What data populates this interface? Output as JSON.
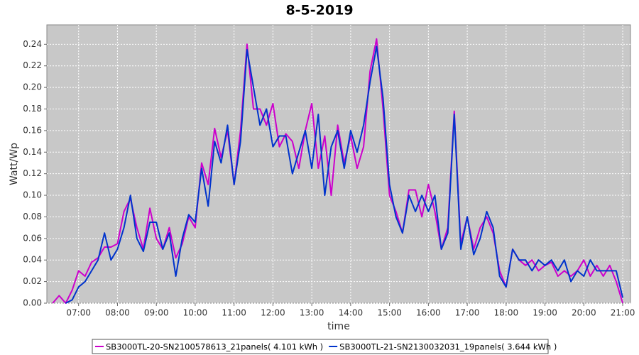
{
  "chart_data": {
    "type": "line",
    "title": "8-5-2019",
    "x_label": "time",
    "y_label": "Watt/Wp",
    "x": [
      "06:20",
      "06:30",
      "06:40",
      "06:50",
      "07:00",
      "07:10",
      "07:20",
      "07:30",
      "07:40",
      "07:50",
      "08:00",
      "08:10",
      "08:20",
      "08:30",
      "08:40",
      "08:50",
      "09:00",
      "09:10",
      "09:20",
      "09:30",
      "09:40",
      "09:50",
      "10:00",
      "10:10",
      "10:20",
      "10:30",
      "10:40",
      "10:50",
      "11:00",
      "11:10",
      "11:20",
      "11:30",
      "11:40",
      "11:50",
      "12:00",
      "12:10",
      "12:20",
      "12:30",
      "12:40",
      "12:50",
      "13:00",
      "13:10",
      "13:20",
      "13:30",
      "13:40",
      "13:50",
      "14:00",
      "14:10",
      "14:20",
      "14:30",
      "14:40",
      "14:50",
      "15:00",
      "15:10",
      "15:20",
      "15:30",
      "15:40",
      "15:50",
      "16:00",
      "16:10",
      "16:20",
      "16:30",
      "16:40",
      "16:50",
      "17:00",
      "17:10",
      "17:20",
      "17:30",
      "17:40",
      "17:50",
      "18:00",
      "18:10",
      "18:20",
      "18:30",
      "18:40",
      "18:50",
      "19:00",
      "19:10",
      "19:20",
      "19:30",
      "19:40",
      "19:50",
      "20:00",
      "20:10",
      "20:20",
      "20:30",
      "20:40",
      "20:50",
      "21:00"
    ],
    "series": [
      {
        "name": "SB3000TL-20-SN2100578613_21panels( 4.101 kWh )",
        "color": "#cc00cc",
        "values": [
          0,
          0.007,
          0,
          0.012,
          0.03,
          0.025,
          0.038,
          0.042,
          0.052,
          0.052,
          0.055,
          0.085,
          0.097,
          0.07,
          0.05,
          0.088,
          0.06,
          0.05,
          0.07,
          0.042,
          0.055,
          0.08,
          0.07,
          0.13,
          0.11,
          0.162,
          0.135,
          0.16,
          0.11,
          0.16,
          0.24,
          0.18,
          0.18,
          0.165,
          0.185,
          0.145,
          0.157,
          0.15,
          0.125,
          0.16,
          0.185,
          0.125,
          0.155,
          0.1,
          0.165,
          0.13,
          0.155,
          0.125,
          0.145,
          0.215,
          0.245,
          0.18,
          0.1,
          0.085,
          0.065,
          0.105,
          0.105,
          0.08,
          0.11,
          0.085,
          0.05,
          0.07,
          0.178,
          0.055,
          0.08,
          0.05,
          0.07,
          0.08,
          0.065,
          0.03,
          0.015,
          0.05,
          0.04,
          0.035,
          0.04,
          0.03,
          0.035,
          0.038,
          0.025,
          0.03,
          0.025,
          0.03,
          0.04,
          0.025,
          0.035,
          0.025,
          0.035,
          0.02,
          0
        ]
      },
      {
        "name": "SB3000TL-21-SN2130032031_19panels( 3.644 kWh )",
        "color": "#0033cc",
        "values": [
          null,
          null,
          0,
          0.003,
          0.015,
          0.02,
          0.03,
          0.04,
          0.065,
          0.04,
          0.05,
          0.07,
          0.1,
          0.06,
          0.048,
          0.075,
          0.075,
          0.05,
          0.065,
          0.025,
          0.06,
          0.082,
          0.075,
          0.125,
          0.09,
          0.15,
          0.13,
          0.165,
          0.11,
          0.15,
          0.235,
          0.2,
          0.165,
          0.18,
          0.145,
          0.155,
          0.155,
          0.12,
          0.14,
          0.16,
          0.125,
          0.175,
          0.1,
          0.145,
          0.16,
          0.125,
          0.16,
          0.14,
          0.165,
          0.205,
          0.238,
          0.19,
          0.11,
          0.08,
          0.065,
          0.1,
          0.085,
          0.1,
          0.085,
          0.1,
          0.05,
          0.065,
          0.175,
          0.05,
          0.08,
          0.045,
          0.06,
          0.085,
          0.07,
          0.025,
          0.015,
          0.05,
          0.04,
          0.04,
          0.03,
          0.04,
          0.035,
          0.04,
          0.03,
          0.04,
          0.02,
          0.03,
          0.025,
          0.04,
          0.03,
          0.03,
          0.03,
          0.03,
          0.005
        ]
      }
    ],
    "xlim": [
      "06:11",
      "21:12"
    ],
    "xticks": [
      "07:00",
      "08:00",
      "09:00",
      "10:00",
      "11:00",
      "12:00",
      "13:00",
      "14:00",
      "15:00",
      "16:00",
      "17:00",
      "18:00",
      "19:00",
      "20:00",
      "21:00"
    ],
    "ylim": [
      0,
      0.258
    ],
    "yticks": [
      {
        "value": 0,
        "label": "0.00"
      },
      {
        "value": 0.02,
        "label": "0.02"
      },
      {
        "value": 0.04,
        "label": "0.04"
      },
      {
        "value": 0.06,
        "label": "0.06"
      },
      {
        "value": 0.08,
        "label": "0.08"
      },
      {
        "value": 0.1,
        "label": "0.10"
      },
      {
        "value": 0.12,
        "label": "0.12"
      },
      {
        "value": 0.14,
        "label": "0.14"
      },
      {
        "value": 0.16,
        "label": "0.16"
      },
      {
        "value": 0.18,
        "label": "0.18"
      },
      {
        "value": 0.2,
        "label": "0.20"
      },
      {
        "value": 0.22,
        "label": "0.22"
      },
      {
        "value": 0.24,
        "label": "0.24"
      }
    ],
    "grid": true,
    "legend": "bottom"
  }
}
